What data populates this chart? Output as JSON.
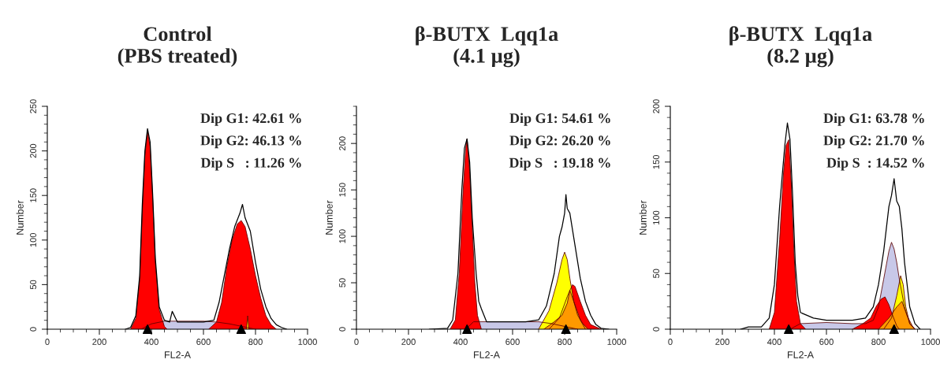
{
  "chart_data": [
    {
      "type": "area",
      "title": "Control\n(PBS treated)",
      "xlabel": "FL2-A",
      "ylabel": "Number",
      "xlim": [
        0,
        1000
      ],
      "xticks": [
        0,
        200,
        400,
        600,
        800,
        1000
      ],
      "ylim": [
        0,
        250
      ],
      "yticks": [
        0,
        50,
        100,
        150,
        200,
        250
      ],
      "annotations": [
        "Dip G1: 42.61 %",
        "Dip G2: 46.13 %",
        "Dip S   : 11.26 %"
      ],
      "series": [
        {
          "color": "#c8c8e8",
          "x": [
            360,
            400,
            450,
            500,
            550,
            600,
            650,
            700,
            750,
            800
          ],
          "values": [
            0,
            6,
            9,
            9,
            9,
            9,
            8,
            6,
            3,
            0
          ]
        },
        {
          "type": "area",
          "color": "#ff0000",
          "x": [
            320,
            340,
            355,
            365,
            375,
            385,
            395,
            405,
            415,
            430,
            450,
            460
          ],
          "values": [
            0,
            12,
            55,
            130,
            195,
            222,
            205,
            145,
            75,
            22,
            3,
            0
          ]
        },
        {
          "type": "area",
          "color": "#ff0000",
          "x": [
            620,
            650,
            670,
            690,
            710,
            730,
            745,
            760,
            780,
            800,
            820,
            840,
            860,
            880
          ],
          "values": [
            0,
            8,
            30,
            70,
            100,
            118,
            122,
            115,
            90,
            60,
            35,
            15,
            5,
            0
          ]
        },
        {
          "type": "area",
          "color": "#ffcc00",
          "x": [
            765,
            770,
            775
          ],
          "values": [
            0,
            15,
            0
          ]
        },
        {
          "type": "line",
          "color": "#000000",
          "x": [
            300,
            320,
            340,
            355,
            365,
            375,
            385,
            395,
            405,
            415,
            430,
            450,
            470,
            480,
            500,
            550,
            600,
            640,
            660,
            680,
            700,
            720,
            740,
            750,
            760,
            780,
            800,
            820,
            840,
            860,
            880,
            900,
            920
          ],
          "values": [
            0,
            2,
            15,
            60,
            140,
            200,
            225,
            210,
            150,
            80,
            25,
            10,
            8,
            20,
            8,
            8,
            8,
            10,
            30,
            60,
            90,
            115,
            130,
            140,
            125,
            110,
            75,
            45,
            25,
            12,
            5,
            2,
            0
          ]
        },
        {
          "type": "scatter",
          "marker": "triangle",
          "color": "#000000",
          "x": [
            385,
            745
          ],
          "values": [
            0,
            0
          ]
        }
      ]
    },
    {
      "type": "area",
      "title": "β-BUTX  Lqq1a\n(4.1 µg)",
      "xlabel": "FL2-A",
      "ylabel": "Number",
      "xlim": [
        0,
        1000
      ],
      "xticks": [
        0,
        200,
        400,
        600,
        800,
        1000
      ],
      "ylim": [
        0,
        240
      ],
      "yticks": [
        0,
        50,
        100,
        150,
        200
      ],
      "annotations": [
        "Dip G1: 54.61 %",
        "Dip G2: 26.20 %",
        "Dip S   : 19.18 %"
      ],
      "series": [
        {
          "color": "#c8c8e8",
          "x": [
            420,
            450,
            500,
            600,
            700,
            750,
            800,
            850
          ],
          "values": [
            0,
            8,
            8,
            8,
            8,
            6,
            3,
            0
          ]
        },
        {
          "type": "area",
          "color": "#ff0000",
          "x": [
            360,
            380,
            395,
            410,
            420,
            425,
            435,
            445,
            455,
            465,
            480
          ],
          "values": [
            0,
            10,
            60,
            150,
            195,
            205,
            170,
            110,
            50,
            15,
            0
          ]
        },
        {
          "type": "area",
          "color": "#ff0000",
          "x": [
            740,
            780,
            810,
            830,
            840,
            860,
            880,
            900,
            940
          ],
          "values": [
            0,
            12,
            35,
            48,
            46,
            30,
            15,
            5,
            0
          ]
        },
        {
          "type": "area",
          "color": "#ffff00",
          "x": [
            700,
            740,
            770,
            790,
            800,
            810,
            820,
            835,
            860,
            880
          ],
          "values": [
            0,
            20,
            50,
            75,
            83,
            75,
            55,
            30,
            10,
            0
          ]
        },
        {
          "type": "area",
          "color": "#ff9900",
          "x": [
            720,
            760,
            790,
            810,
            820,
            835,
            850,
            870,
            890
          ],
          "values": [
            0,
            8,
            15,
            28,
            42,
            30,
            15,
            6,
            0
          ]
        },
        {
          "type": "line",
          "color": "#000000",
          "x": [
            280,
            350,
            370,
            390,
            405,
            415,
            425,
            435,
            445,
            460,
            470,
            480,
            500,
            550,
            600,
            650,
            700,
            730,
            760,
            780,
            790,
            800,
            805,
            810,
            820,
            840,
            860,
            880,
            900,
            920,
            940,
            970
          ],
          "values": [
            0,
            1,
            10,
            60,
            150,
            195,
            205,
            180,
            120,
            60,
            30,
            22,
            8,
            8,
            8,
            8,
            10,
            25,
            60,
            100,
            110,
            125,
            145,
            130,
            125,
            90,
            55,
            30,
            15,
            5,
            1,
            0
          ]
        },
        {
          "type": "scatter",
          "marker": "triangle",
          "color": "#000000",
          "x": [
            425,
            805
          ],
          "values": [
            0,
            0
          ]
        }
      ]
    },
    {
      "type": "area",
      "title": "β-BUTX  Lqq1a\n(8.2 µg)",
      "xlabel": "FL2-A",
      "ylabel": "Number",
      "xlim": [
        0,
        1000
      ],
      "xticks": [
        0,
        200,
        400,
        600,
        800,
        1000
      ],
      "ylim": [
        0,
        200
      ],
      "yticks": [
        0,
        50,
        100,
        150,
        200
      ],
      "annotations": [
        "Dip G1: 63.78 %",
        "Dip G2: 21.70 %",
        "Dip S  : 14.52 %"
      ],
      "series": [
        {
          "color": "#c8c8e8",
          "x": [
            460,
            500,
            600,
            700,
            750,
            780,
            800,
            820,
            840,
            850,
            860,
            870,
            880,
            900,
            920,
            940
          ],
          "values": [
            0,
            5,
            6,
            5,
            5,
            8,
            20,
            45,
            70,
            78,
            72,
            60,
            45,
            20,
            5,
            0
          ]
        },
        {
          "type": "area",
          "color": "#ff0000",
          "x": [
            380,
            400,
            420,
            435,
            445,
            455,
            465,
            475,
            485,
            500,
            520
          ],
          "values": [
            0,
            15,
            80,
            140,
            165,
            170,
            130,
            70,
            25,
            5,
            0
          ]
        },
        {
          "type": "area",
          "color": "#ff0000",
          "x": [
            700,
            740,
            770,
            790,
            810,
            825,
            840,
            855,
            870,
            880
          ],
          "values": [
            0,
            5,
            10,
            20,
            27,
            29,
            22,
            12,
            3,
            0
          ]
        },
        {
          "type": "area",
          "color": "#ffff00",
          "x": [
            820,
            850,
            870,
            885,
            895,
            905,
            920,
            940
          ],
          "values": [
            0,
            10,
            30,
            48,
            40,
            20,
            5,
            0
          ]
        },
        {
          "type": "area",
          "color": "#ff9900",
          "x": [
            800,
            840,
            870,
            890,
            910,
            930,
            940
          ],
          "values": [
            0,
            10,
            20,
            25,
            12,
            3,
            0
          ]
        },
        {
          "type": "line",
          "color": "#000000",
          "x": [
            270,
            300,
            350,
            380,
            400,
            420,
            440,
            450,
            460,
            470,
            480,
            490,
            500,
            550,
            600,
            650,
            700,
            750,
            780,
            800,
            820,
            830,
            840,
            850,
            860,
            870,
            880,
            890,
            900,
            920,
            940,
            960
          ],
          "values": [
            0,
            2,
            2,
            10,
            40,
            110,
            165,
            185,
            170,
            120,
            60,
            30,
            15,
            10,
            8,
            8,
            8,
            10,
            20,
            40,
            70,
            90,
            110,
            120,
            135,
            115,
            110,
            90,
            60,
            20,
            5,
            0
          ]
        },
        {
          "type": "scatter",
          "marker": "triangle",
          "color": "#000000",
          "x": [
            455,
            860
          ],
          "values": [
            0,
            0
          ]
        }
      ]
    }
  ]
}
